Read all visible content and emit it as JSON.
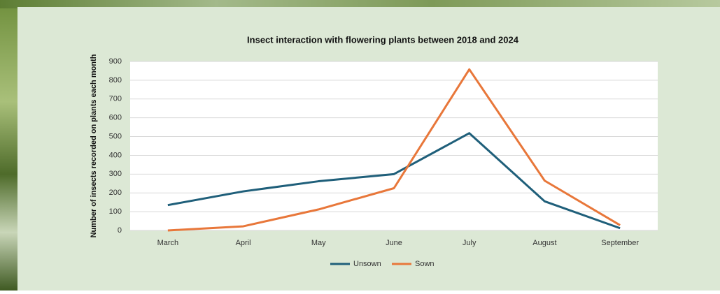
{
  "chart_data": {
    "type": "line",
    "title": "Insect interaction with flowering plants between 2018 and 2024",
    "y_label": "Number of insects recorded on plants each month",
    "categories": [
      "March",
      "April",
      "May",
      "June",
      "July",
      "August",
      "September"
    ],
    "series": [
      {
        "name": "Unsown",
        "color": "#1f5f7a",
        "values": [
          135,
          208,
          262,
          300,
          518,
          155,
          12
        ]
      },
      {
        "name": "Sown",
        "color": "#e8773a",
        "values": [
          0,
          22,
          112,
          225,
          858,
          265,
          28
        ]
      }
    ],
    "ylim": [
      0,
      900
    ],
    "yticks": [
      0,
      100,
      200,
      300,
      400,
      500,
      600,
      700,
      800,
      900
    ],
    "grid": true,
    "legend": "bottom"
  }
}
